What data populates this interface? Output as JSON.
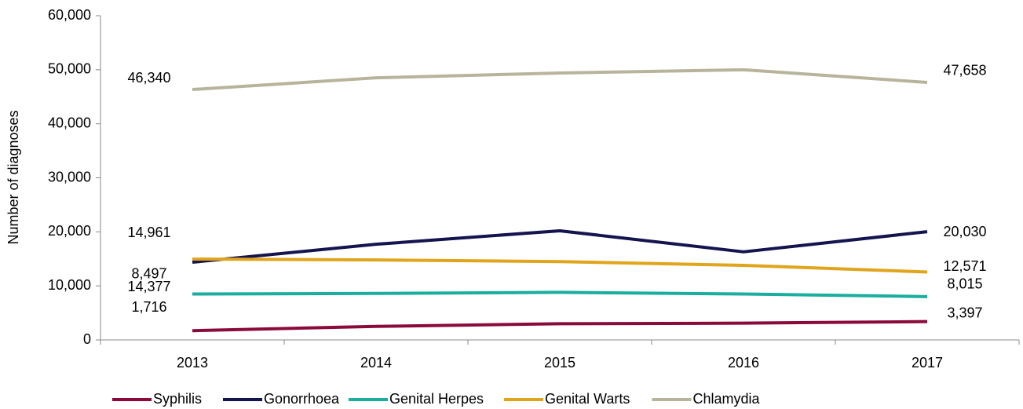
{
  "chart_data": {
    "type": "line",
    "y_label": "Number of diagnoses",
    "categories": [
      "2013",
      "2014",
      "2015",
      "2016",
      "2017"
    ],
    "series": [
      {
        "name": "Syphilis",
        "color": "#8b0a3c",
        "values": [
          1716,
          2500,
          3000,
          3100,
          3397
        ],
        "value_labels": [
          "1,716",
          null,
          null,
          null,
          "3,397"
        ]
      },
      {
        "name": "Gonorrhoea",
        "color": "#14144f",
        "values": [
          14377,
          17700,
          20200,
          16300,
          20030
        ],
        "value_labels": [
          "14,377",
          null,
          null,
          null,
          "20,030"
        ]
      },
      {
        "name": "Genital Herpes",
        "color": "#1aae9f",
        "values": [
          8497,
          8600,
          8800,
          8500,
          8015
        ],
        "value_labels": [
          "8,497",
          null,
          null,
          null,
          "8,015"
        ]
      },
      {
        "name": "Genital Warts",
        "color": "#e0a51b",
        "values": [
          14961,
          14800,
          14500,
          13800,
          12571
        ],
        "value_labels": [
          "14,961",
          null,
          null,
          null,
          "12,571"
        ]
      },
      {
        "name": "Chlamydia",
        "color": "#b8b49c",
        "values": [
          46340,
          48500,
          49400,
          50000,
          47658
        ],
        "value_labels": [
          "46,340",
          null,
          null,
          null,
          "47,658"
        ]
      }
    ],
    "ylim": [
      0,
      60000
    ],
    "yticks": [
      0,
      {
        "value": 10000,
        "label": "10,000"
      },
      {
        "value": 20000,
        "label": "20,000"
      },
      {
        "value": 30000,
        "label": "30,000"
      },
      {
        "value": 40000,
        "label": "40,000"
      },
      {
        "value": 50000,
        "label": "50,000"
      },
      {
        "value": 60000,
        "label": "60,000"
      }
    ],
    "grid": false,
    "legend": "bottom"
  }
}
